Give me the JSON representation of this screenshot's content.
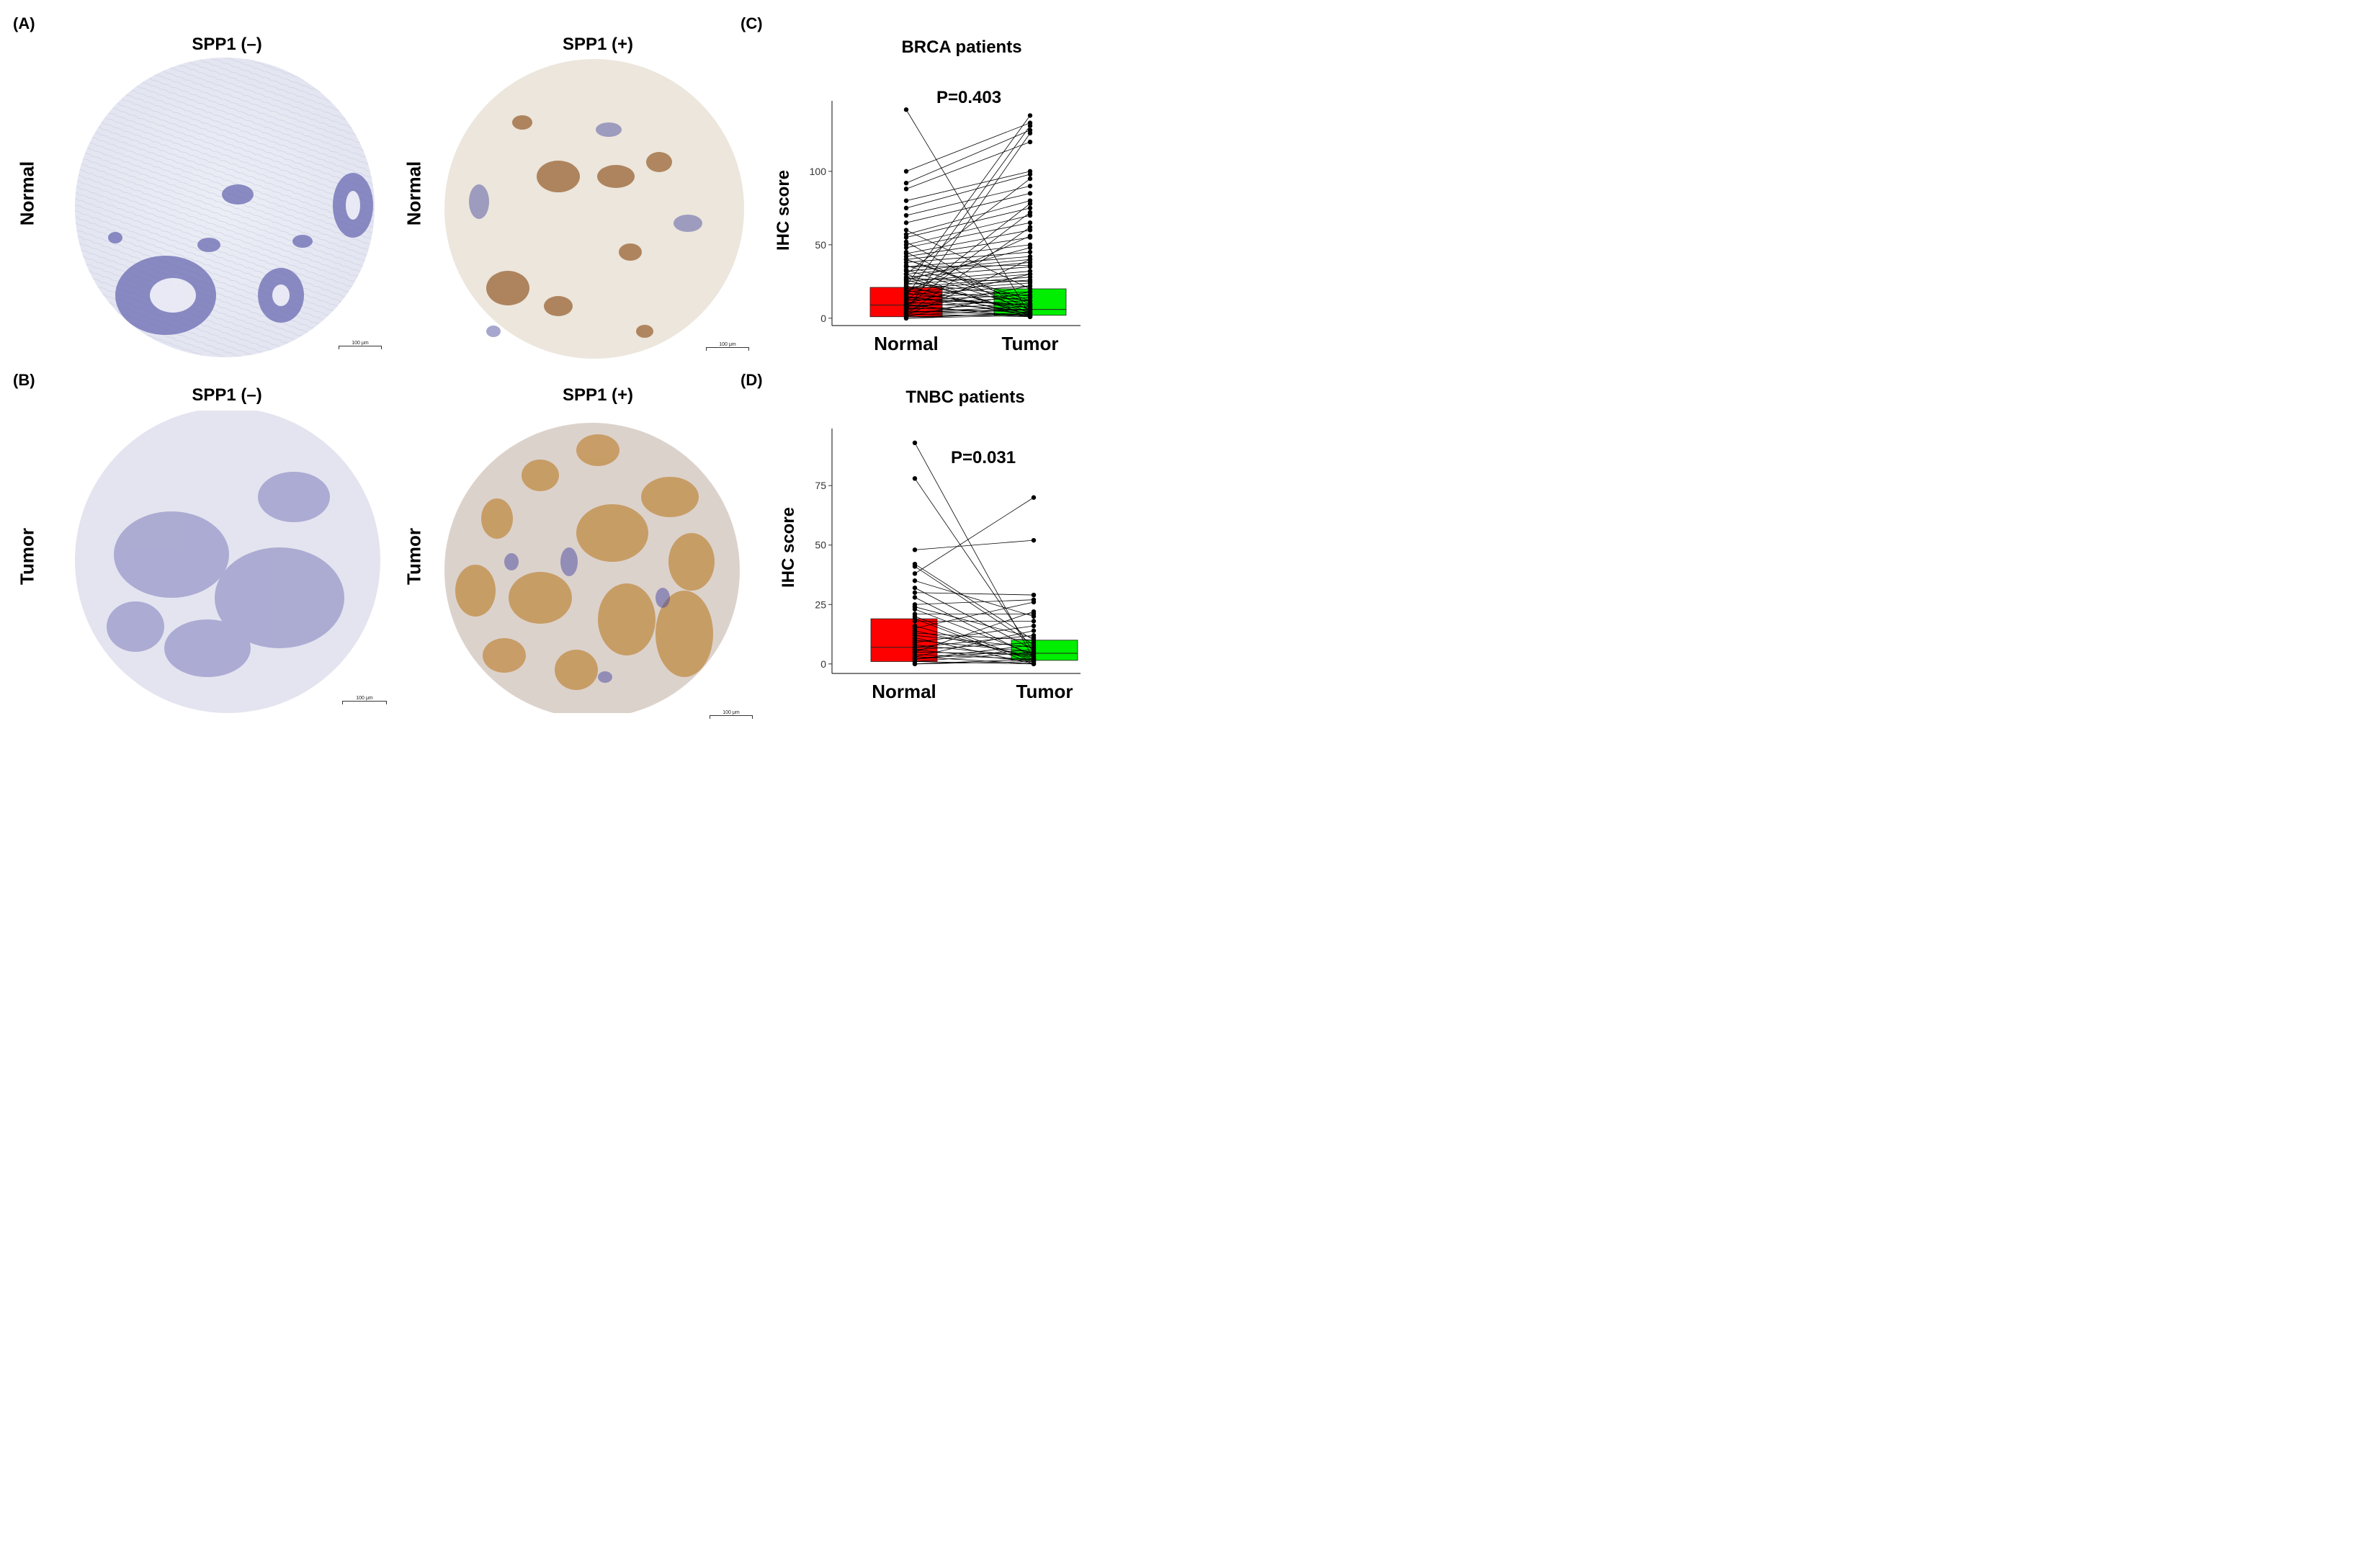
{
  "labels": {
    "A": "(A)",
    "B": "(B)",
    "C": "(C)",
    "D": "(D)"
  },
  "micrographs": {
    "neg_title": "SPP1 (–)",
    "pos_title": "SPP1 (+)",
    "row_normal": "Normal",
    "row_tumor": "Tumor",
    "scale": "100 μm"
  },
  "colors": {
    "normal_box": "#ff0000",
    "tumor_box": "#00ee00",
    "hematoxylin": "#5a5aa8",
    "dab": "#b57a3c"
  },
  "chart_data": [
    {
      "type": "box",
      "title": "BRCA patients",
      "annotation": "P=0.403",
      "ylabel": "IHC score",
      "xlabel": "",
      "categories": [
        "Normal",
        "Tumor"
      ],
      "ylim": [
        -5,
        148
      ],
      "yticks": [
        0,
        50,
        100
      ],
      "grid": false,
      "boxes": [
        {
          "name": "Normal",
          "q1": 1,
          "median": 9,
          "q3": 21,
          "color": "#ff0000"
        },
        {
          "name": "Tumor",
          "q1": 2,
          "median": 6,
          "q3": 20,
          "color": "#00ee00"
        }
      ],
      "paired_lines": [
        [
          142,
          2
        ],
        [
          100,
          133
        ],
        [
          92,
          128
        ],
        [
          88,
          120
        ],
        [
          80,
          100
        ],
        [
          75,
          98
        ],
        [
          70,
          90
        ],
        [
          65,
          85
        ],
        [
          60,
          20
        ],
        [
          57,
          80
        ],
        [
          55,
          75
        ],
        [
          52,
          5
        ],
        [
          50,
          70
        ],
        [
          48,
          65
        ],
        [
          45,
          3
        ],
        [
          44,
          60
        ],
        [
          42,
          55
        ],
        [
          40,
          10
        ],
        [
          40,
          50
        ],
        [
          38,
          45
        ],
        [
          36,
          8
        ],
        [
          35,
          42
        ],
        [
          33,
          6
        ],
        [
          32,
          40
        ],
        [
          30,
          38
        ],
        [
          30,
          2
        ],
        [
          28,
          35
        ],
        [
          27,
          25
        ],
        [
          26,
          4
        ],
        [
          25,
          32
        ],
        [
          24,
          15
        ],
        [
          23,
          30
        ],
        [
          22,
          1
        ],
        [
          21,
          28
        ],
        [
          20,
          12
        ],
        [
          20,
          26
        ],
        [
          19,
          3
        ],
        [
          18,
          24
        ],
        [
          17,
          7
        ],
        [
          16,
          22
        ],
        [
          15,
          2
        ],
        [
          14,
          18
        ],
        [
          13,
          9
        ],
        [
          12,
          16
        ],
        [
          11,
          5
        ],
        [
          10,
          14
        ],
        [
          9,
          1
        ],
        [
          8,
          12
        ],
        [
          7,
          4
        ],
        [
          6,
          10
        ],
        [
          5,
          2
        ],
        [
          4,
          8
        ],
        [
          3,
          1
        ],
        [
          2,
          6
        ],
        [
          1,
          3
        ],
        [
          0,
          2
        ],
        [
          22,
          138
        ],
        [
          15,
          131
        ],
        [
          5,
          126
        ],
        [
          30,
          95
        ],
        [
          12,
          78
        ],
        [
          8,
          72
        ],
        [
          3,
          62
        ],
        [
          18,
          56
        ],
        [
          26,
          48
        ],
        [
          2,
          40
        ],
        [
          35,
          36
        ],
        [
          10,
          30
        ],
        [
          6,
          22
        ],
        [
          1,
          18
        ],
        [
          40,
          12
        ],
        [
          14,
          9
        ],
        [
          4,
          6
        ],
        [
          0,
          4
        ],
        [
          28,
          2
        ],
        [
          9,
          1
        ]
      ]
    },
    {
      "type": "box",
      "title": "TNBC patients",
      "annotation": "P=0.031",
      "ylabel": "IHC score",
      "xlabel": "",
      "categories": [
        "Normal",
        "Tumor"
      ],
      "ylim": [
        -4,
        99
      ],
      "yticks": [
        0,
        25,
        50,
        75
      ],
      "grid": false,
      "boxes": [
        {
          "name": "Normal",
          "q1": 1,
          "median": 7,
          "q3": 19,
          "color": "#ff0000"
        },
        {
          "name": "Tumor",
          "q1": 1.5,
          "median": 4.5,
          "q3": 10,
          "color": "#00ee00"
        }
      ],
      "paired_lines": [
        [
          93,
          2
        ],
        [
          78,
          5
        ],
        [
          48,
          52
        ],
        [
          42,
          10
        ],
        [
          41,
          8
        ],
        [
          38,
          70
        ],
        [
          35,
          20
        ],
        [
          32,
          6
        ],
        [
          30,
          29
        ],
        [
          28,
          3
        ],
        [
          25,
          27
        ],
        [
          23,
          4
        ],
        [
          21,
          21
        ],
        [
          20,
          1
        ],
        [
          18,
          18
        ],
        [
          16,
          2
        ],
        [
          15,
          26
        ],
        [
          13,
          10
        ],
        [
          12,
          7
        ],
        [
          10,
          5
        ],
        [
          9,
          16
        ],
        [
          8,
          3
        ],
        [
          7,
          12
        ],
        [
          6,
          9
        ],
        [
          5,
          4
        ],
        [
          4,
          2
        ],
        [
          3,
          14
        ],
        [
          2,
          6
        ],
        [
          1,
          0
        ],
        [
          0,
          1
        ],
        [
          11,
          0
        ],
        [
          5,
          22
        ],
        [
          2,
          8
        ],
        [
          14,
          3
        ],
        [
          24,
          11
        ],
        [
          0,
          2
        ],
        [
          3,
          0
        ],
        [
          1,
          5
        ],
        [
          6,
          1
        ],
        [
          19,
          0
        ]
      ]
    }
  ]
}
